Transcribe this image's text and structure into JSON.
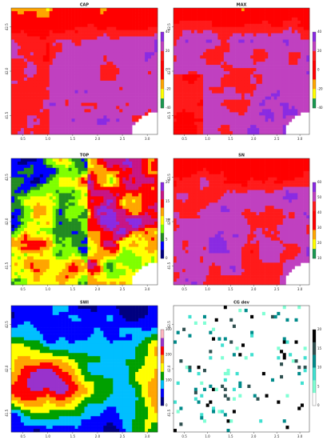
{
  "panels": [
    {
      "title": "CAP",
      "x_ticks": [
        "0.5",
        "1.0",
        "1.5",
        "2.0",
        "2.5",
        "3.0"
      ],
      "y_ticks": [
        "42.5",
        "42.0",
        "41.5"
      ],
      "colorbar_labels": [
        "40",
        "20",
        "0",
        "-20",
        "-40"
      ]
    },
    {
      "title": "MAX",
      "x_ticks": [
        "0.5",
        "1.0",
        "1.5",
        "2.0",
        "2.5",
        "3.0"
      ],
      "y_ticks": [
        "42.5",
        "42.0",
        "41.5"
      ],
      "colorbar_labels": [
        "40",
        "20",
        "0",
        "-20",
        "-40"
      ]
    },
    {
      "title": "TOP",
      "x_ticks": [
        "0.5",
        "1.0",
        "1.5",
        "2.0",
        "2.5",
        "3.0"
      ],
      "y_ticks": [
        "42.5",
        "42.0",
        "41.5"
      ],
      "colorbar_labels": [
        "20",
        "15",
        "10",
        "5",
        "0"
      ]
    },
    {
      "title": "SN",
      "x_ticks": [
        "0.5",
        "1.0",
        "1.5",
        "2.0",
        "2.5",
        "3.0"
      ],
      "y_ticks": [
        "42.5",
        "42.0",
        "41.5"
      ],
      "colorbar_labels": [
        "60",
        "50",
        "40",
        "30",
        "20",
        "10"
      ]
    },
    {
      "title": "SWI",
      "x_ticks": [
        "0.5",
        "1.0",
        "1.5",
        "2.0",
        "2.5",
        "3.0"
      ],
      "y_ticks": [
        "42.5",
        "42.0",
        "41.5"
      ],
      "colorbar_labels": [
        "300",
        "200",
        "100",
        "0"
      ]
    },
    {
      "title": "CG dev",
      "x_ticks": [
        "0.5",
        "1.0",
        "1.5",
        "2.0",
        "2.5",
        "3.0"
      ],
      "y_ticks": [
        "42.5",
        "42.0",
        "41.5"
      ],
      "colorbar_labels": [
        "20",
        "15",
        "10",
        "5",
        "0"
      ]
    }
  ]
}
